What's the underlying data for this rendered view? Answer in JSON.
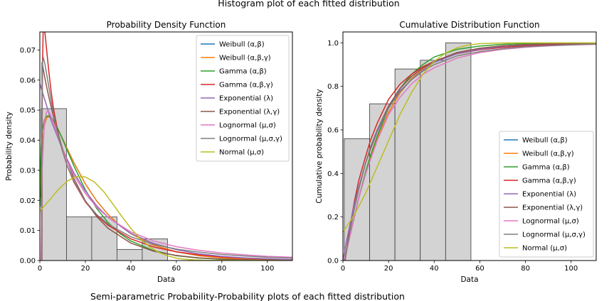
{
  "figure": {
    "suptitle": "Histogram plot of each fitted distribution",
    "footer": "Semi-parametric Probability-Probability plots of each fitted distribution"
  },
  "legend_labels": [
    "Weibull (α,β)",
    "Weibull (α,β,γ)",
    "Gamma (α,β)",
    "Gamma (α,β,γ)",
    "Exponential (λ)",
    "Exponential (λ,γ)",
    "Lognormal (μ,σ)",
    "Lognormal (μ,σ,γ)",
    "Normal (μ,σ)"
  ],
  "series_colors": [
    "#1f77b4",
    "#ff7f0e",
    "#2ca02c",
    "#d62728",
    "#9467bd",
    "#8c564b",
    "#e377c2",
    "#7f7f7f",
    "#bcbd22"
  ],
  "chart_data": [
    {
      "type": "histogram",
      "title": "Probability Density Function",
      "xlabel": "Data",
      "ylabel": "Probability density",
      "xlim": [
        0,
        111
      ],
      "ylim": [
        0,
        0.076
      ],
      "xticks": [
        "0",
        "20",
        "40",
        "60",
        "80",
        "100"
      ],
      "yticks": [
        "0.00",
        "0.01",
        "0.02",
        "0.03",
        "0.04",
        "0.05",
        "0.06",
        "0.07"
      ],
      "bins": [
        {
          "x0": 0.6,
          "x1": 11.7,
          "value": 0.0505
        },
        {
          "x0": 11.7,
          "x1": 22.8,
          "value": 0.0145
        },
        {
          "x0": 22.8,
          "x1": 33.9,
          "value": 0.0145
        },
        {
          "x0": 33.9,
          "x1": 45.0,
          "value": 0.0037
        },
        {
          "x0": 45.0,
          "x1": 56.1,
          "value": 0.0072
        }
      ],
      "legend_position": "upper right",
      "curves": [
        {
          "x": [
            0.2,
            0.5,
            1,
            2,
            3,
            4,
            5,
            6,
            8,
            10,
            12,
            15,
            20,
            25,
            30,
            35,
            40,
            50,
            60,
            70,
            80,
            90,
            100,
            111
          ],
          "y": [
            0.021,
            0.03,
            0.038,
            0.045,
            0.0475,
            0.0478,
            0.0472,
            0.0462,
            0.0435,
            0.0405,
            0.0372,
            0.0325,
            0.0255,
            0.0198,
            0.0153,
            0.0117,
            0.0089,
            0.0051,
            0.0029,
            0.0016,
            0.0009,
            0.0005,
            0.0003,
            0.00015
          ]
        },
        {
          "x": [
            0.2,
            0.5,
            1,
            2,
            3,
            4,
            5,
            6,
            8,
            10,
            12,
            15,
            20,
            25,
            30,
            35,
            40,
            50,
            60,
            70,
            80,
            90,
            100,
            111
          ],
          "y": [
            0.021,
            0.03,
            0.038,
            0.045,
            0.0475,
            0.0478,
            0.0472,
            0.0462,
            0.0435,
            0.0405,
            0.0372,
            0.0325,
            0.0255,
            0.0198,
            0.0153,
            0.0117,
            0.0089,
            0.0051,
            0.0029,
            0.0016,
            0.0009,
            0.0005,
            0.0003,
            0.00015
          ]
        },
        {
          "x": [
            0.1,
            0.3,
            0.6,
            1,
            2,
            3,
            4,
            5,
            6,
            8,
            10,
            12,
            15,
            20,
            25,
            30,
            35,
            40,
            50,
            60,
            70,
            80,
            90,
            100,
            111
          ],
          "y": [
            0.018,
            0.03,
            0.038,
            0.043,
            0.0468,
            0.048,
            0.0481,
            0.0476,
            0.0466,
            0.0437,
            0.0403,
            0.0367,
            0.0314,
            0.0235,
            0.0173,
            0.0126,
            0.0091,
            0.0065,
            0.0033,
            0.0016,
            0.0008,
            0.0004,
            0.0002,
            0.0001,
            5e-05
          ]
        },
        {
          "x": [
            0.9,
            1.0,
            1.2,
            1.5,
            2,
            3,
            4,
            5,
            6,
            8,
            10,
            12,
            15,
            20,
            25,
            30,
            40,
            50,
            60,
            70,
            80,
            90,
            100,
            111
          ],
          "y": [
            0.0001,
            0.045,
            0.066,
            0.078,
            0.0775,
            0.07,
            0.0625,
            0.056,
            0.0505,
            0.0425,
            0.0365,
            0.0315,
            0.026,
            0.0195,
            0.015,
            0.0117,
            0.0072,
            0.0045,
            0.0029,
            0.0019,
            0.0012,
            0.0008,
            0.0005,
            0.0003
          ]
        },
        {
          "x": [
            0,
            5,
            10,
            15,
            20,
            25,
            30,
            40,
            50,
            60,
            70,
            80,
            90,
            100,
            111
          ],
          "y": [
            0.0588,
            0.0465,
            0.0368,
            0.0291,
            0.0231,
            0.0182,
            0.0144,
            0.009,
            0.0057,
            0.0036,
            0.0022,
            0.0014,
            0.0009,
            0.0006,
            0.0003
          ]
        },
        {
          "x": [
            0.9,
            0.95,
            1.2,
            2,
            3,
            4,
            5,
            6,
            8,
            10,
            15,
            20,
            25,
            30,
            40,
            50,
            60,
            70,
            80,
            90,
            100,
            111
          ],
          "y": [
            0.0,
            0.066,
            0.065,
            0.0615,
            0.0577,
            0.0542,
            0.0509,
            0.0478,
            0.0421,
            0.0371,
            0.0272,
            0.0199,
            0.0146,
            0.0107,
            0.0058,
            0.0031,
            0.0017,
            0.0009,
            0.0005,
            0.0003,
            0.00014,
            7e-05
          ]
        },
        {
          "x": [
            0.5,
            1,
            2,
            3,
            4,
            5,
            6,
            8,
            10,
            12,
            15,
            20,
            25,
            30,
            40,
            50,
            60,
            70,
            80,
            90,
            100,
            111
          ],
          "y": [
            0.0,
            0.03,
            0.046,
            0.0495,
            0.0495,
            0.0478,
            0.0458,
            0.0412,
            0.0368,
            0.033,
            0.0283,
            0.0223,
            0.0177,
            0.0143,
            0.0095,
            0.0065,
            0.0046,
            0.0034,
            0.0025,
            0.0019,
            0.0014,
            0.0011
          ]
        },
        {
          "x": [
            0.8,
            0.9,
            1.0,
            1.2,
            1.6,
            2.2,
            3,
            4,
            5,
            6,
            8,
            10,
            12,
            15,
            20,
            25,
            30,
            40,
            50,
            60,
            70,
            80,
            90,
            100,
            111
          ],
          "y": [
            0.0,
            0.04,
            0.058,
            0.066,
            0.0672,
            0.0655,
            0.062,
            0.0575,
            0.053,
            0.0488,
            0.0418,
            0.0362,
            0.0316,
            0.0263,
            0.0198,
            0.0153,
            0.0121,
            0.0079,
            0.0054,
            0.0038,
            0.0028,
            0.002,
            0.0015,
            0.0011,
            0.0008
          ]
        },
        {
          "x": [
            0,
            4,
            8,
            12,
            16,
            20,
            24,
            28,
            32,
            36,
            40,
            44,
            48,
            52,
            56,
            60,
            64,
            68,
            72,
            111
          ],
          "y": [
            0.0164,
            0.0199,
            0.0235,
            0.0264,
            0.0279,
            0.0278,
            0.0261,
            0.023,
            0.0189,
            0.0147,
            0.0107,
            0.0073,
            0.0047,
            0.0028,
            0.0016,
            0.0008,
            0.0004,
            0.0002,
            0.0001,
            0.0
          ]
        }
      ]
    },
    {
      "type": "histogram",
      "title": "Cumulative Distribution Function",
      "xlabel": "Data",
      "ylabel": "Cumulative probability density",
      "xlim": [
        0,
        111
      ],
      "ylim": [
        0,
        1.05
      ],
      "xticks": [
        "0",
        "20",
        "40",
        "60",
        "80",
        "100"
      ],
      "yticks": [
        "0.0",
        "0.2",
        "0.4",
        "0.6",
        "0.8",
        "1.0"
      ],
      "bins": [
        {
          "x0": 0.6,
          "x1": 11.7,
          "value": 0.56
        },
        {
          "x0": 11.7,
          "x1": 22.8,
          "value": 0.72
        },
        {
          "x0": 22.8,
          "x1": 33.9,
          "value": 0.88
        },
        {
          "x0": 33.9,
          "x1": 45.0,
          "value": 0.92
        },
        {
          "x0": 45.0,
          "x1": 56.1,
          "value": 1.0
        }
      ],
      "legend_position": "lower right",
      "curves": [
        {
          "x": [
            0,
            1,
            2,
            3,
            5,
            7,
            10,
            12,
            15,
            20,
            25,
            30,
            35,
            40,
            50,
            60,
            70,
            80,
            90,
            100,
            111
          ],
          "y": [
            0,
            0.03,
            0.07,
            0.11,
            0.2,
            0.29,
            0.4,
            0.47,
            0.56,
            0.68,
            0.77,
            0.835,
            0.88,
            0.915,
            0.955,
            0.975,
            0.986,
            0.992,
            0.995,
            0.997,
            0.998
          ]
        },
        {
          "x": [
            0,
            1,
            2,
            3,
            5,
            7,
            10,
            12,
            15,
            20,
            25,
            30,
            35,
            40,
            50,
            60,
            70,
            80,
            90,
            100,
            111
          ],
          "y": [
            0,
            0.03,
            0.07,
            0.11,
            0.2,
            0.29,
            0.4,
            0.47,
            0.56,
            0.68,
            0.77,
            0.835,
            0.88,
            0.915,
            0.955,
            0.975,
            0.986,
            0.992,
            0.995,
            0.997,
            0.998
          ]
        },
        {
          "x": [
            0,
            1,
            2,
            3,
            5,
            7,
            10,
            12,
            15,
            20,
            25,
            30,
            35,
            40,
            50,
            60,
            70,
            80,
            90,
            100,
            111
          ],
          "y": [
            0,
            0.025,
            0.065,
            0.11,
            0.2,
            0.29,
            0.41,
            0.48,
            0.57,
            0.7,
            0.79,
            0.855,
            0.9,
            0.935,
            0.97,
            0.985,
            0.993,
            0.997,
            0.998,
            0.999,
            0.999
          ]
        },
        {
          "x": [
            0,
            1,
            1.5,
            2,
            3,
            5,
            7,
            10,
            12,
            15,
            20,
            25,
            30,
            35,
            40,
            50,
            60,
            70,
            80,
            90,
            100,
            111
          ],
          "y": [
            0,
            0,
            0.04,
            0.08,
            0.15,
            0.27,
            0.37,
            0.48,
            0.55,
            0.63,
            0.74,
            0.81,
            0.855,
            0.89,
            0.915,
            0.95,
            0.968,
            0.979,
            0.986,
            0.99,
            0.993,
            0.995
          ]
        },
        {
          "x": [
            0,
            1,
            2,
            3,
            5,
            7,
            10,
            12,
            15,
            20,
            25,
            30,
            35,
            40,
            50,
            60,
            70,
            80,
            90,
            100,
            111
          ],
          "y": [
            0,
            0.06,
            0.11,
            0.16,
            0.26,
            0.34,
            0.45,
            0.51,
            0.59,
            0.7,
            0.78,
            0.83,
            0.875,
            0.91,
            0.95,
            0.97,
            0.983,
            0.99,
            0.994,
            0.996,
            0.998
          ]
        },
        {
          "x": [
            0,
            1,
            2,
            3,
            5,
            7,
            10,
            12,
            15,
            20,
            25,
            30,
            35,
            40,
            50,
            60,
            70,
            80,
            90,
            100,
            111
          ],
          "y": [
            0,
            0.005,
            0.07,
            0.13,
            0.24,
            0.33,
            0.45,
            0.51,
            0.6,
            0.71,
            0.79,
            0.845,
            0.885,
            0.915,
            0.955,
            0.975,
            0.986,
            0.992,
            0.995,
            0.997,
            0.998
          ]
        },
        {
          "x": [
            0,
            1,
            2,
            3,
            5,
            7,
            10,
            12,
            15,
            20,
            25,
            30,
            35,
            40,
            50,
            60,
            70,
            80,
            90,
            100,
            111
          ],
          "y": [
            0,
            0.02,
            0.06,
            0.11,
            0.2,
            0.29,
            0.4,
            0.46,
            0.55,
            0.67,
            0.75,
            0.81,
            0.855,
            0.885,
            0.93,
            0.955,
            0.97,
            0.98,
            0.986,
            0.99,
            0.993
          ]
        },
        {
          "x": [
            0,
            1,
            2,
            3,
            5,
            7,
            10,
            12,
            15,
            20,
            25,
            30,
            35,
            40,
            50,
            60,
            70,
            80,
            90,
            100,
            111
          ],
          "y": [
            0,
            0.005,
            0.07,
            0.13,
            0.24,
            0.33,
            0.45,
            0.52,
            0.6,
            0.7,
            0.775,
            0.83,
            0.87,
            0.9,
            0.94,
            0.96,
            0.973,
            0.982,
            0.987,
            0.991,
            0.994
          ]
        },
        {
          "x": [
            0,
            5,
            10,
            15,
            20,
            25,
            30,
            35,
            40,
            45,
            50,
            55,
            60,
            65,
            70,
            80,
            90,
            111
          ],
          "y": [
            0.13,
            0.21,
            0.31,
            0.43,
            0.55,
            0.67,
            0.77,
            0.855,
            0.915,
            0.953,
            0.977,
            0.99,
            0.996,
            0.998,
            0.999,
            1.0,
            1.0,
            1.0
          ]
        }
      ]
    }
  ]
}
